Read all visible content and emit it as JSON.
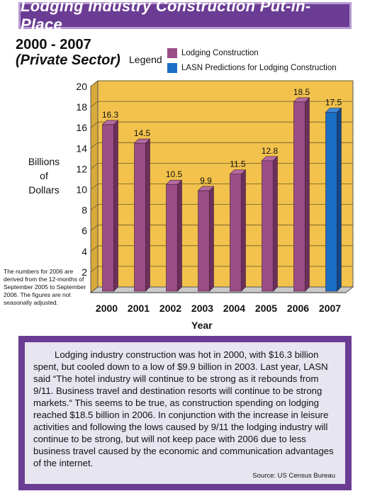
{
  "header": {
    "title": "Lodging Industry Construction Put-in-Place"
  },
  "subtitle": {
    "range": "2000 - 2007",
    "sector": "(Private Sector)"
  },
  "legend": {
    "title": "Legend",
    "items": [
      {
        "label": "Lodging Construction",
        "color": "#9b4d86"
      },
      {
        "label": "LASN Predictions for Lodging Construction",
        "color": "#1a6fc4"
      }
    ]
  },
  "note": "The numbers for 2006 are derived from the 12-months of September 2005 to September 2006. The figures are not seasonally adjusted.",
  "chart_data": {
    "type": "bar",
    "categories": [
      "2000",
      "2001",
      "2002",
      "2003",
      "2004",
      "2005",
      "2006",
      "2007"
    ],
    "values": [
      16.3,
      14.5,
      10.5,
      9.9,
      11.5,
      12.8,
      18.5,
      17.5
    ],
    "value_labels": [
      "16.3",
      "14.5",
      "10.5",
      "9.9",
      "11.5",
      "12.8",
      "18.5",
      "17.5"
    ],
    "series_colors": [
      "#9b4d86",
      "#9b4d86",
      "#9b4d86",
      "#9b4d86",
      "#9b4d86",
      "#9b4d86",
      "#9b4d86",
      "#1a6fc4"
    ],
    "ylabel": "Billions of Dollars",
    "xlabel": "Year",
    "ylim": [
      0,
      20
    ],
    "yticks": [
      "2",
      "4",
      "6",
      "8",
      "10",
      "12",
      "14",
      "16",
      "18",
      "20"
    ],
    "grid": true,
    "background_color": "#f2c24c"
  },
  "body": {
    "paragraph": "Lodging industry construction was hot in 2000, with $16.3 billion spent, but cooled down to a low of $9.9 billion in 2003. Last year, LASN said “The hotel industry will continue to be strong as it rebounds from 9/11. Business travel and destination resorts will continue to be strong markets.“ This seems to be true, as construction spending on lodging reached $18.5 billion in 2006. In conjunction with the increase in leisure activities and following the lows caused by 9/11 the lodging industry will continue to be strong, but will not keep pace with 2006 due to less business travel caused by the economic and communication advantages of the internet.",
    "source": "Source: US Census  Bureau"
  }
}
